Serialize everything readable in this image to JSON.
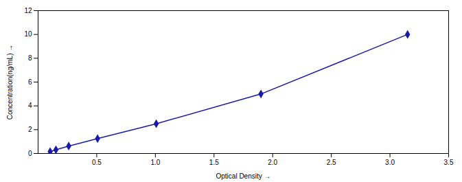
{
  "chart_data": {
    "type": "line",
    "x": [
      0.103,
      0.152,
      0.261,
      0.507,
      1.007,
      1.9,
      3.15
    ],
    "values": [
      0.156,
      0.313,
      0.625,
      1.25,
      2.5,
      5.0,
      10.0
    ],
    "error": [
      0.00234,
      0.004695,
      0.009375,
      0.01875,
      0.0375,
      0.075,
      0.15
    ],
    "color": "#1a1aaa",
    "marker": "diamond",
    "xlabel": "Optical Density",
    "ylabel": "Concentration(ng/mL)",
    "xlim": [
      0.0,
      3.5
    ],
    "ylim": [
      0.0,
      12.0
    ],
    "xticks": [
      0.5,
      {
        "value": 1,
        "label": "1.0"
      },
      1.5,
      {
        "value": 2,
        "label": "2.0"
      },
      2.5,
      {
        "value": 3,
        "label": "3.0"
      },
      3.5
    ],
    "yticks": [
      0,
      2,
      4,
      6,
      8,
      10,
      12
    ],
    "grid": false
  }
}
